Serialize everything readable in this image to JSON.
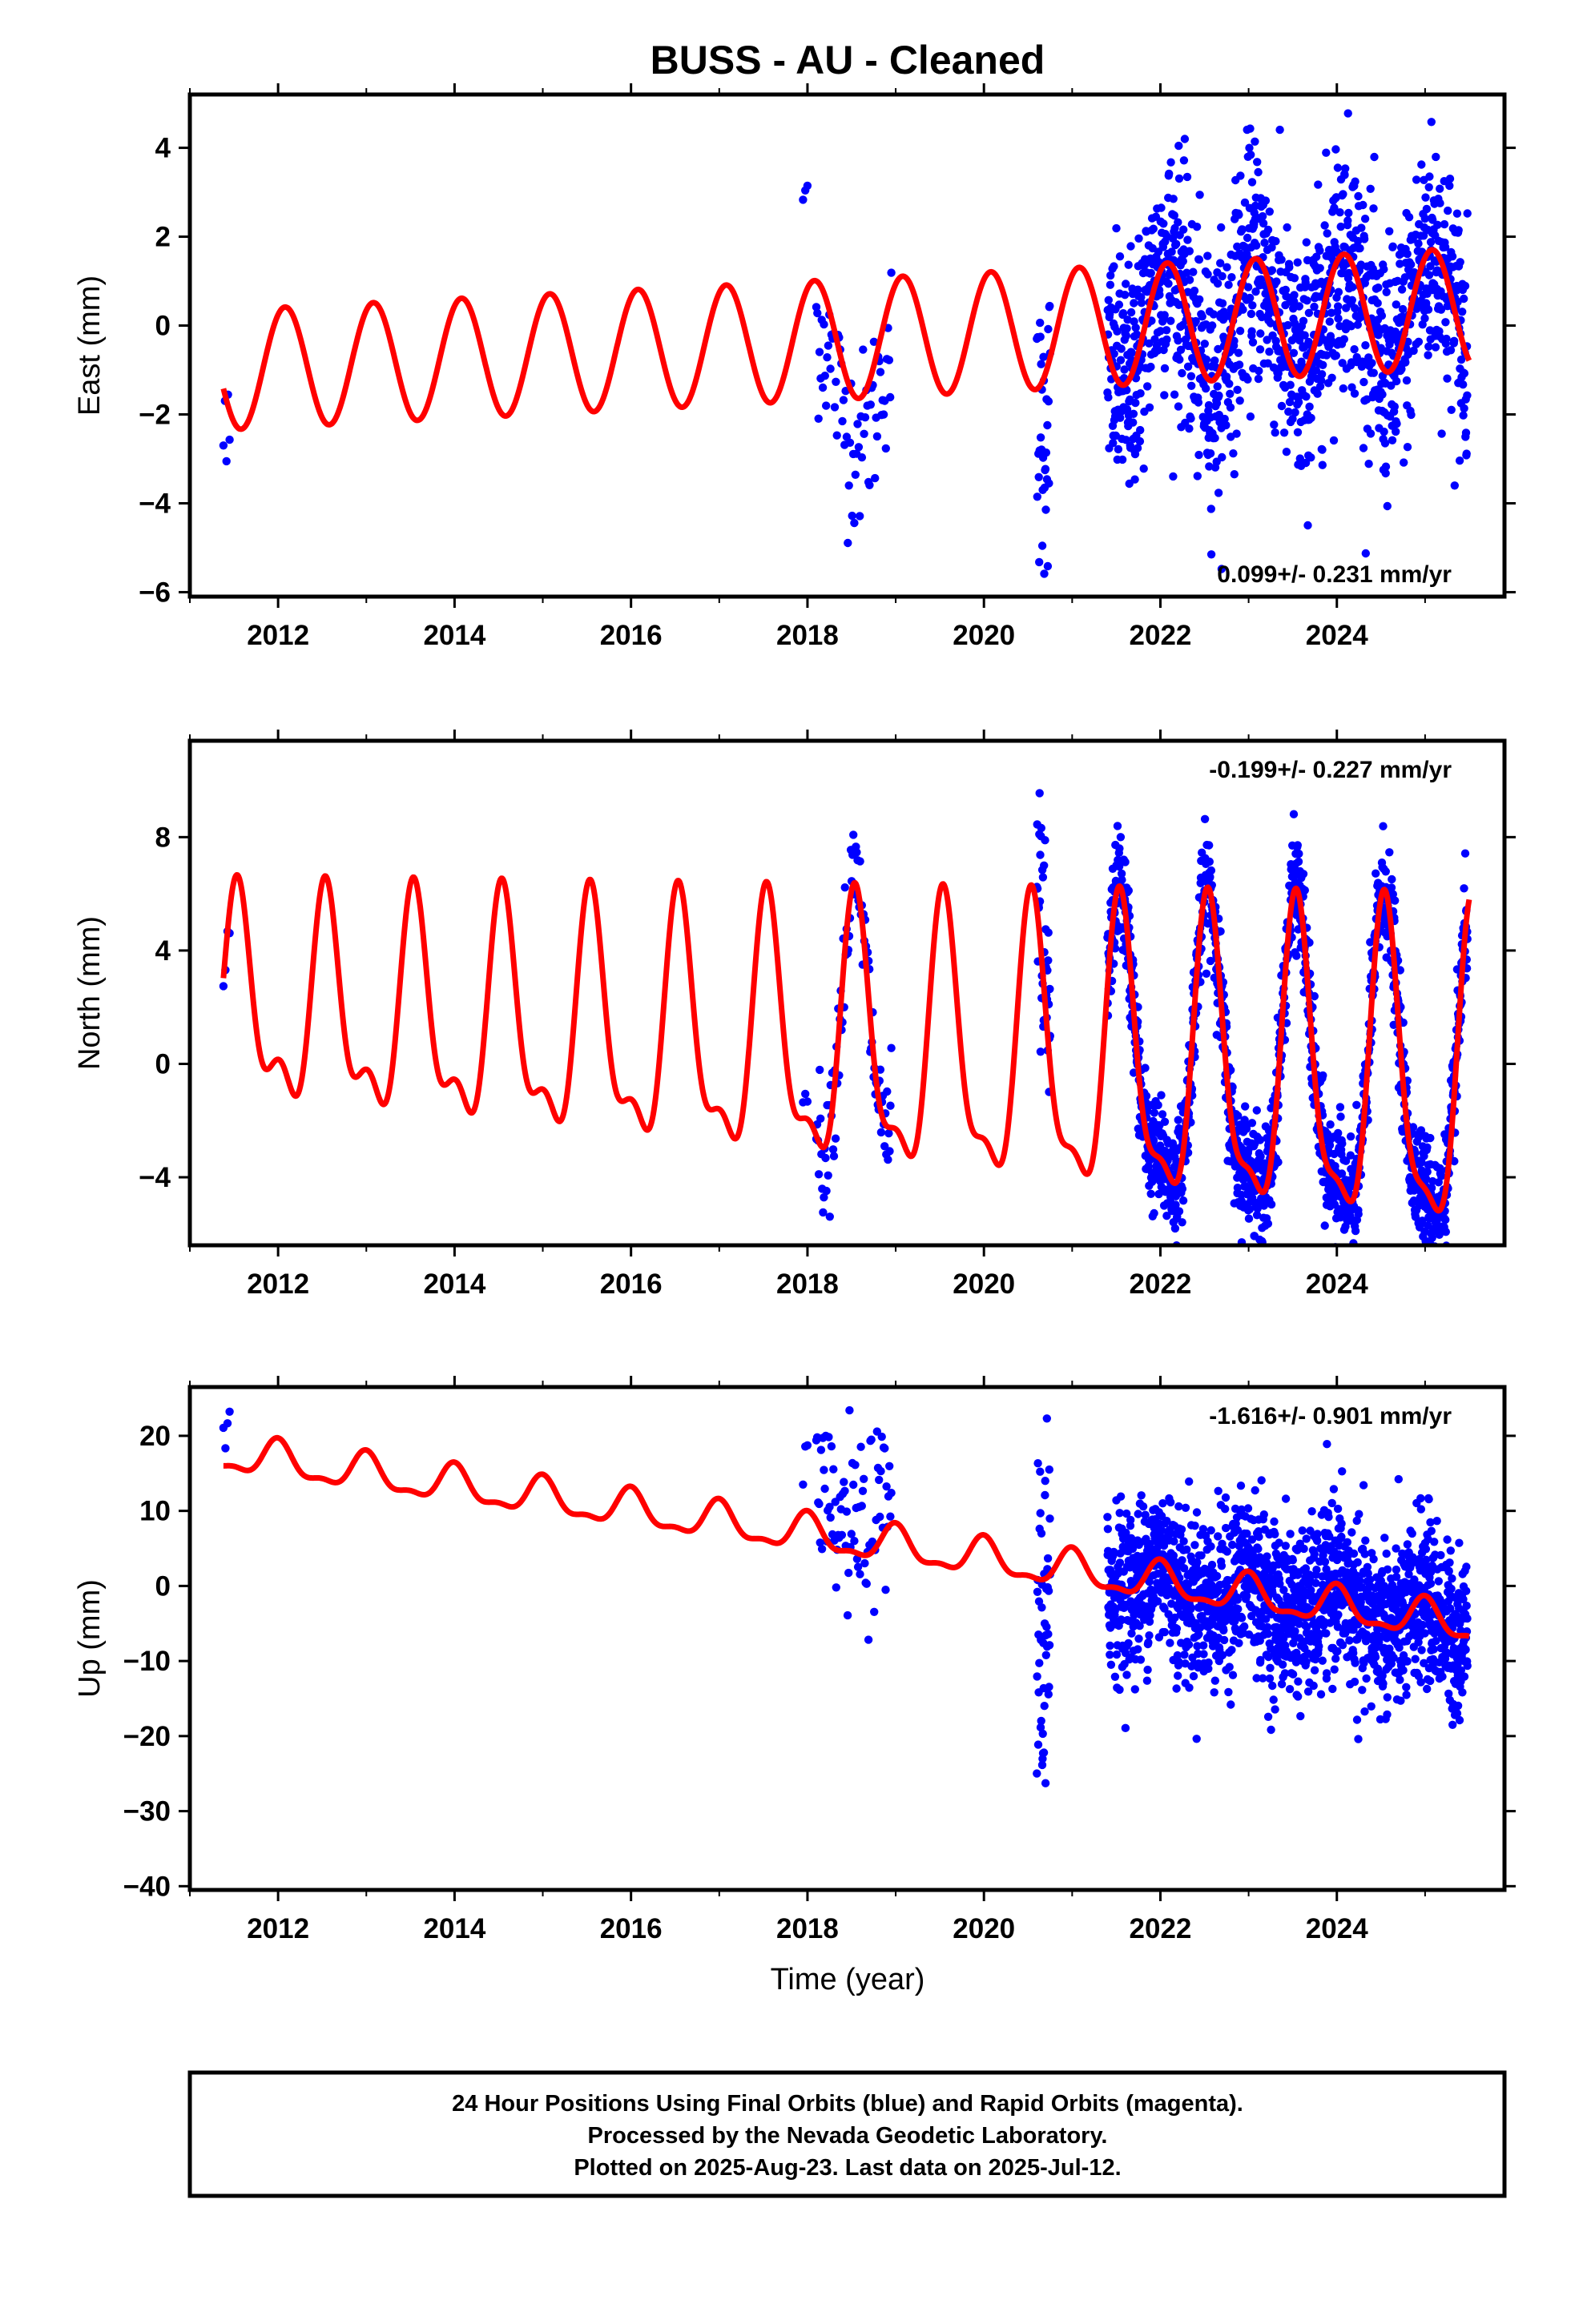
{
  "figure": {
    "title": "BUSS  - AU - Cleaned",
    "xlabel": "Time (year)",
    "footer": [
      "24 Hour Positions Using Final Orbits (blue) and Rapid Orbits (magenta).",
      "Processed by the Nevada Geodetic Laboratory.",
      "Plotted on 2025-Aug-23. Last data on 2025-Jul-12."
    ]
  },
  "colors": {
    "points": "#0000ff",
    "model": "#ff0000",
    "axes": "#000000"
  },
  "chart_data": [
    {
      "type": "scatter",
      "panel": "east",
      "ylabel": "East (mm)",
      "annotation": "0.099+/- 0.231 mm/yr",
      "xlim": [
        2011.0,
        2025.9
      ],
      "ylim": [
        -6.1,
        5.2
      ],
      "xticks": [
        2012,
        2014,
        2016,
        2018,
        2020,
        2022,
        2024
      ],
      "yticks": [
        -6,
        -4,
        -2,
        0,
        2,
        4
      ],
      "model": {
        "offset": -1.0,
        "trend": 0.099,
        "amp": 1.35,
        "amp_growth": 0.0,
        "phase_year": 2012.08,
        "semi_amp": 0.0,
        "semi_phase": 0.0,
        "trend_ref": 2011.4
      },
      "segments": [
        {
          "start": 2011.38,
          "end": 2011.45,
          "count": 5,
          "spread": 0.9,
          "bias": -1.0
        },
        {
          "start": 2017.95,
          "end": 2018.0,
          "count": 3,
          "spread": 0.1,
          "bias": 2.3
        },
        {
          "start": 2018.1,
          "end": 2018.95,
          "count": 70,
          "spread": 1.0,
          "bias": -1.0
        },
        {
          "start": 2020.6,
          "end": 2020.75,
          "count": 35,
          "spread": 1.6,
          "bias": -1.2
        },
        {
          "start": 2021.4,
          "end": 2025.48,
          "count": 1300,
          "spread": 1.35,
          "bias": 0.0
        }
      ]
    },
    {
      "type": "scatter",
      "panel": "north",
      "ylabel": "North (mm)",
      "annotation": "-0.199+/- 0.227 mm/yr",
      "xlim": [
        2011.0,
        2025.9
      ],
      "ylim": [
        -6.4,
        11.4
      ],
      "xticks": [
        2012,
        2014,
        2016,
        2018,
        2020,
        2022,
        2024
      ],
      "yticks": [
        -4,
        0,
        4,
        8
      ],
      "model": {
        "offset": 1.9,
        "trend": -0.199,
        "amp": 3.2,
        "amp_growth": 0.05,
        "phase_year": 2011.55,
        "semi_amp": 1.6,
        "semi_phase": 0.3,
        "trend_ref": 2011.4
      },
      "segments": [
        {
          "start": 2011.38,
          "end": 2011.45,
          "count": 4,
          "spread": 0.2,
          "bias": -0.3
        },
        {
          "start": 2017.95,
          "end": 2018.0,
          "count": 3,
          "spread": 0.2,
          "bias": 0.8
        },
        {
          "start": 2018.1,
          "end": 2018.95,
          "count": 90,
          "spread": 1.2,
          "bias": 0.0
        },
        {
          "start": 2020.6,
          "end": 2020.75,
          "count": 40,
          "spread": 2.2,
          "bias": 0.5
        },
        {
          "start": 2021.4,
          "end": 2025.48,
          "count": 1500,
          "spread": 1.0,
          "bias": 0.0
        }
      ]
    },
    {
      "type": "scatter",
      "panel": "up",
      "ylabel": "Up (mm)",
      "annotation": "-1.616+/- 0.901 mm/yr",
      "xlim": [
        2011.0,
        2025.9
      ],
      "ylim": [
        -40.5,
        26.5
      ],
      "xticks": [
        2012,
        2014,
        2016,
        2018,
        2020,
        2022,
        2024
      ],
      "yticks": [
        -40,
        -30,
        -20,
        -10,
        0,
        10,
        20
      ],
      "model": {
        "offset": 17.5,
        "trend": -1.616,
        "amp": 2.3,
        "amp_growth": 0.0,
        "phase_year": 2012.0,
        "semi_amp": 0.9,
        "semi_phase": 0.1,
        "trend_ref": 2011.4
      },
      "segments": [
        {
          "start": 2011.38,
          "end": 2011.45,
          "count": 4,
          "spread": 2.0,
          "bias": 3.0
        },
        {
          "start": 2017.95,
          "end": 2018.0,
          "count": 3,
          "spread": 2.0,
          "bias": 6.0
        },
        {
          "start": 2018.1,
          "end": 2018.95,
          "count": 80,
          "spread": 6.0,
          "bias": 3.0
        },
        {
          "start": 2020.6,
          "end": 2020.75,
          "count": 50,
          "spread": 14.0,
          "bias": -8.0
        },
        {
          "start": 2021.4,
          "end": 2025.48,
          "count": 1700,
          "spread": 5.5,
          "bias": 0.0
        }
      ]
    }
  ]
}
